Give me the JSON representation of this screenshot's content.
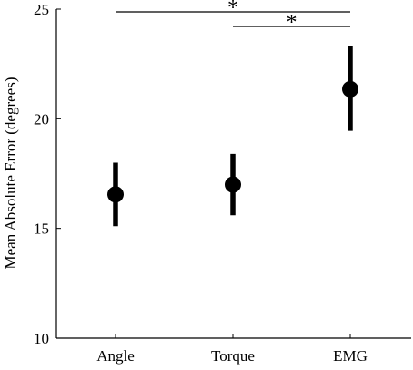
{
  "chart_data": {
    "type": "scatter",
    "title": "",
    "xlabel": "",
    "ylabel": "Mean Absolute Error (degrees)",
    "categories": [
      "Angle",
      "Torque",
      "EMG"
    ],
    "series": [
      {
        "values": [
          16.55,
          17.0,
          21.35
        ],
        "error_low": [
          15.1,
          15.6,
          19.45
        ],
        "error_high": [
          18.0,
          18.4,
          23.3
        ]
      }
    ],
    "ylim": [
      10,
      25
    ],
    "yticks": [
      10,
      15,
      20,
      25
    ],
    "ytick_labels": [
      "10",
      "15",
      "20",
      "25"
    ],
    "grid": false,
    "significance": [
      {
        "from": "Angle",
        "to": "EMG",
        "label": "*"
      },
      {
        "from": "Torque",
        "to": "EMG",
        "label": "*"
      }
    ]
  }
}
